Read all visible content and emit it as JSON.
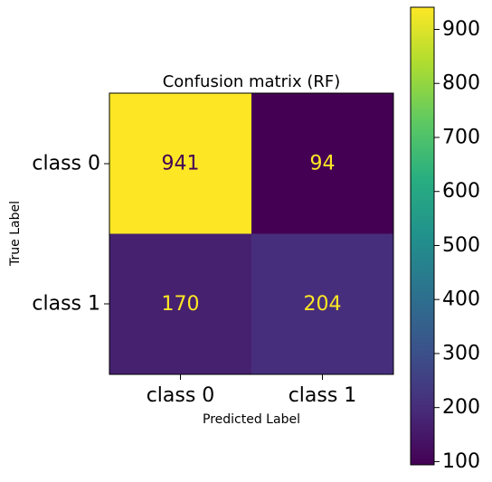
{
  "chart_data": {
    "type": "heatmap",
    "title": "Confusion matrix (RF)",
    "xlabel": "Predicted Label",
    "ylabel": "True Label",
    "x_categories": [
      "class 0",
      "class 1"
    ],
    "y_categories": [
      "class 0",
      "class 1"
    ],
    "values": [
      [
        941,
        94
      ],
      [
        170,
        204
      ]
    ],
    "value_labels": [
      [
        "941",
        "94"
      ],
      [
        "170",
        "204"
      ]
    ],
    "colormap": "viridis",
    "colorbar": {
      "range": [
        94,
        941
      ],
      "ticks": [
        100,
        200,
        300,
        400,
        500,
        600,
        700,
        800,
        900
      ],
      "tick_labels": [
        "100",
        "200",
        "300",
        "400",
        "500",
        "600",
        "700",
        "800",
        "900"
      ]
    },
    "text_colors": {
      "on_dark": "#fde725",
      "on_light": "#440154"
    }
  }
}
